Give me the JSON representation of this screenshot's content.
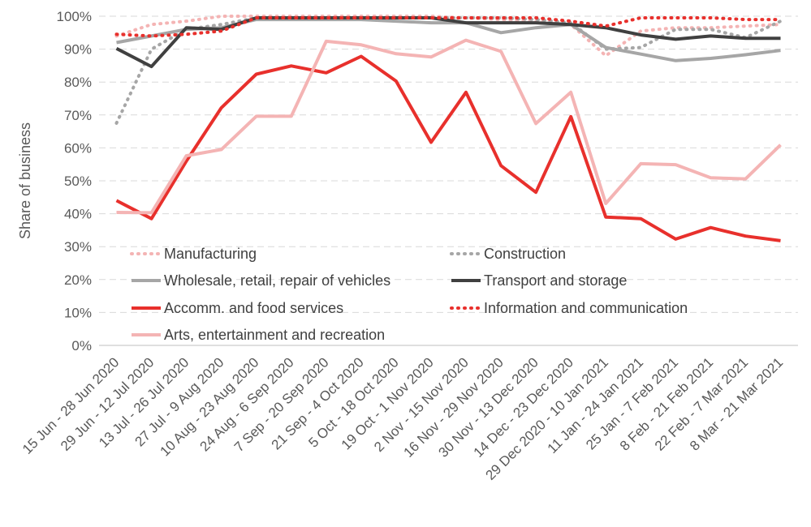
{
  "chart_data": {
    "type": "line",
    "title": "",
    "xlabel": "",
    "ylabel": "Share of business",
    "ylim": [
      0,
      100
    ],
    "yticks": [
      "0%",
      "10%",
      "20%",
      "30%",
      "40%",
      "50%",
      "60%",
      "70%",
      "80%",
      "90%",
      "100%"
    ],
    "grid": true,
    "legend_position": "bottom-inside",
    "categories": [
      "15 Jun - 28 Jun 2020",
      "29 Jun - 12 Jul 2020",
      "13 Jul - 26 Jul 2020",
      "27 Jul - 9 Aug 2020",
      "10 Aug - 23 Aug 2020",
      "24 Aug - 6 Sep 2020",
      "7 Sep - 20 Sep 2020",
      "21 Sep - 4 Oct 2020",
      "5 Oct - 18 Oct 2020",
      "19 Oct - 1 Nov 2020",
      "2 Nov - 15 Nov 2020",
      "16 Nov - 29 Nov 2020",
      "30 Nov - 13 Dec 2020",
      "14 Dec - 23 Dec 2020",
      "29 Dec 2020 - 10 Jan 2021",
      "11 Jan - 24 Jan 2021",
      "25 Jan - 7 Feb 2021",
      "8 Feb - 21 Feb 2021",
      "22 Feb - 7 Mar 2021",
      "8 Mar - 21 Mar 2021"
    ],
    "series": [
      {
        "name": "Manufacturing",
        "color": "#f4b4b4",
        "dash": "dot",
        "width": 4,
        "values": [
          94,
          97.5,
          98.5,
          100,
          100,
          100,
          100,
          100,
          100,
          100,
          99.5,
          99,
          98.5,
          97.5,
          88,
          95.5,
          96.5,
          96.5,
          97,
          97.5
        ]
      },
      {
        "name": "Construction",
        "color": "#a6a6a6",
        "dash": "dot",
        "width": 4,
        "values": [
          67.5,
          90,
          96,
          97.5,
          99.5,
          99.5,
          99.5,
          99.5,
          99.5,
          99.5,
          99.5,
          99.5,
          99,
          98,
          90,
          90.5,
          96,
          96,
          93.5,
          98.5
        ]
      },
      {
        "name": "Wholesale, retail, repair of vehicles",
        "color": "#a6a6a6",
        "dash": "solid",
        "width": 4,
        "values": [
          92,
          94,
          96,
          96.5,
          99,
          99,
          99,
          99,
          98.5,
          98,
          98,
          95,
          96.5,
          97.5,
          90.5,
          88.5,
          86.5,
          87.2,
          88.3,
          89.6
        ]
      },
      {
        "name": "Transport and storage",
        "color": "#404040",
        "dash": "solid",
        "width": 4,
        "values": [
          90.2,
          84.7,
          96.5,
          96,
          99.5,
          99.5,
          99.5,
          99.5,
          99.5,
          99.5,
          98,
          98,
          98,
          97.5,
          96.5,
          94.3,
          93,
          94,
          93.3,
          93.3
        ]
      },
      {
        "name": "Accomm. and food services",
        "color": "#e8302c",
        "dash": "solid",
        "width": 4,
        "values": [
          44,
          38.5,
          56,
          72.2,
          82.4,
          84.9,
          82.8,
          87.8,
          80.3,
          61.7,
          76.9,
          54.6,
          46.5,
          69.5,
          39,
          38.5,
          32.3,
          35.8,
          33.2,
          31.8
        ]
      },
      {
        "name": "Information and communication",
        "color": "#e8302c",
        "dash": "dot",
        "width": 4,
        "values": [
          94.5,
          94,
          94.5,
          95.5,
          99.5,
          99.5,
          99.5,
          99.5,
          99.5,
          99.5,
          99.5,
          99.5,
          99.5,
          98.5,
          97,
          99.5,
          99.5,
          99.5,
          99,
          99
        ]
      },
      {
        "name": "Arts, entertainment and recreation",
        "color": "#f4b4b4",
        "dash": "solid",
        "width": 4,
        "values": [
          40.4,
          40.3,
          57.6,
          59.5,
          69.6,
          69.6,
          92.4,
          91.3,
          88.6,
          87.6,
          92.7,
          89.3,
          67.4,
          76.9,
          43.1,
          55.2,
          54.9,
          50.9,
          50.6,
          60.9
        ]
      }
    ]
  }
}
